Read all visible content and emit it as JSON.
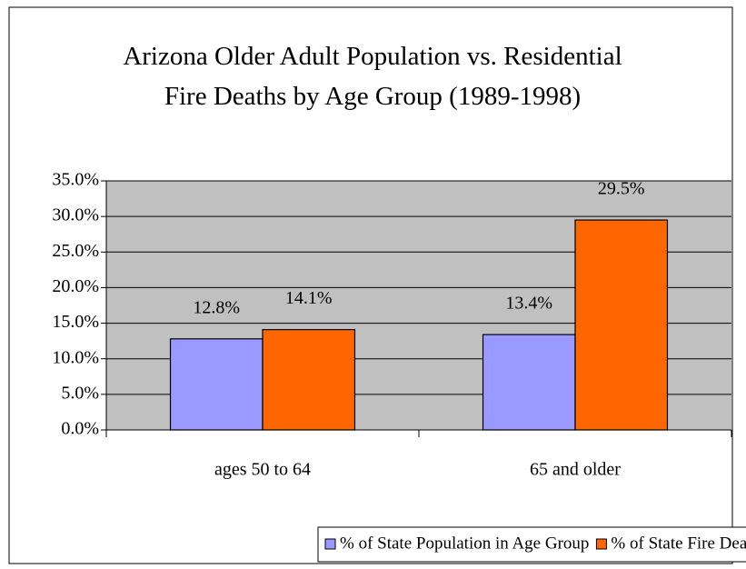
{
  "chart_data": {
    "type": "bar",
    "title": "Arizona Older Adult Population vs. Residential Fire Deaths by Age Group (1989-1998)",
    "categories": [
      "ages 50 to 64",
      "65 and older"
    ],
    "series": [
      {
        "name": "% of State Population in Age Group",
        "color": "#9999ff",
        "values": [
          12.8,
          13.4
        ],
        "value_labels": [
          "12.8%",
          "13.4%"
        ]
      },
      {
        "name": "% of State Fire Deaths in Age Group",
        "color": "#ff6600",
        "values": [
          14.1,
          29.5
        ],
        "value_labels": [
          "14.1%",
          "29.5%"
        ]
      }
    ],
    "ylim": [
      0,
      35
    ],
    "yticks": [
      {
        "value": 0,
        "label": "0.0%"
      },
      {
        "value": 5,
        "label": "5.0%"
      },
      {
        "value": 10,
        "label": "10.0%"
      },
      {
        "value": 15,
        "label": "15.0%"
      },
      {
        "value": 20,
        "label": "20.0%"
      },
      {
        "value": 25,
        "label": "25.0%"
      },
      {
        "value": 30,
        "label": "30.0%"
      },
      {
        "value": 35,
        "label": "35.0%"
      }
    ],
    "grid": true,
    "legend": "bottom"
  }
}
